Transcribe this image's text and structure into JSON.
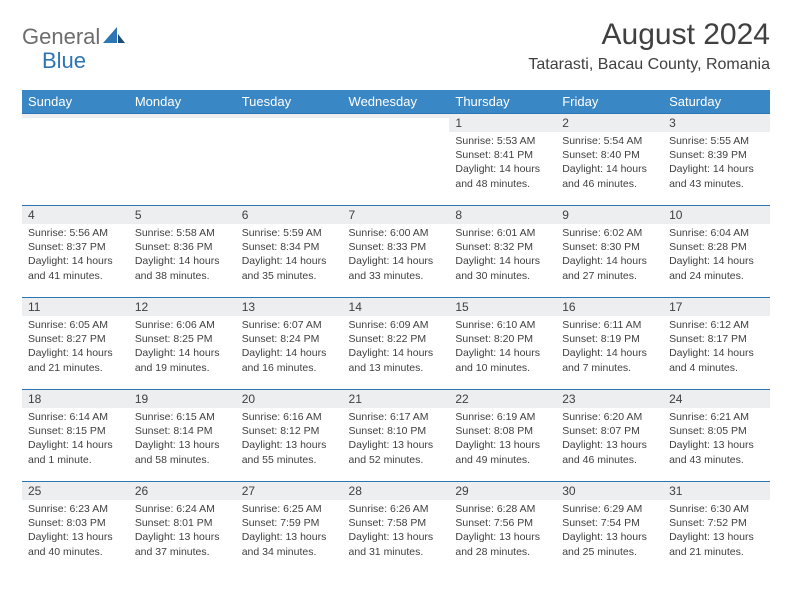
{
  "brand": {
    "part1": "General",
    "part2": "Blue"
  },
  "title": {
    "month": "August 2024",
    "location": "Tatarasti, Bacau County, Romania"
  },
  "colors": {
    "header_bg": "#3a87c6",
    "header_text": "#ffffff",
    "accent_line": "#2e75b6",
    "daynum_bg": "#eceeef",
    "body_text": "#404040",
    "logo_gray": "#6d6d6d",
    "logo_blue": "#2e75b6",
    "page_bg": "#ffffff"
  },
  "weekdays": [
    "Sunday",
    "Monday",
    "Tuesday",
    "Wednesday",
    "Thursday",
    "Friday",
    "Saturday"
  ],
  "labels": {
    "sunrise": "Sunrise:",
    "sunset": "Sunset:",
    "daylight": "Daylight:"
  },
  "weeks": [
    [
      null,
      null,
      null,
      null,
      {
        "n": "1",
        "sr": "5:53 AM",
        "ss": "8:41 PM",
        "dl": "14 hours and 48 minutes."
      },
      {
        "n": "2",
        "sr": "5:54 AM",
        "ss": "8:40 PM",
        "dl": "14 hours and 46 minutes."
      },
      {
        "n": "3",
        "sr": "5:55 AM",
        "ss": "8:39 PM",
        "dl": "14 hours and 43 minutes."
      }
    ],
    [
      {
        "n": "4",
        "sr": "5:56 AM",
        "ss": "8:37 PM",
        "dl": "14 hours and 41 minutes."
      },
      {
        "n": "5",
        "sr": "5:58 AM",
        "ss": "8:36 PM",
        "dl": "14 hours and 38 minutes."
      },
      {
        "n": "6",
        "sr": "5:59 AM",
        "ss": "8:34 PM",
        "dl": "14 hours and 35 minutes."
      },
      {
        "n": "7",
        "sr": "6:00 AM",
        "ss": "8:33 PM",
        "dl": "14 hours and 33 minutes."
      },
      {
        "n": "8",
        "sr": "6:01 AM",
        "ss": "8:32 PM",
        "dl": "14 hours and 30 minutes."
      },
      {
        "n": "9",
        "sr": "6:02 AM",
        "ss": "8:30 PM",
        "dl": "14 hours and 27 minutes."
      },
      {
        "n": "10",
        "sr": "6:04 AM",
        "ss": "8:28 PM",
        "dl": "14 hours and 24 minutes."
      }
    ],
    [
      {
        "n": "11",
        "sr": "6:05 AM",
        "ss": "8:27 PM",
        "dl": "14 hours and 21 minutes."
      },
      {
        "n": "12",
        "sr": "6:06 AM",
        "ss": "8:25 PM",
        "dl": "14 hours and 19 minutes."
      },
      {
        "n": "13",
        "sr": "6:07 AM",
        "ss": "8:24 PM",
        "dl": "14 hours and 16 minutes."
      },
      {
        "n": "14",
        "sr": "6:09 AM",
        "ss": "8:22 PM",
        "dl": "14 hours and 13 minutes."
      },
      {
        "n": "15",
        "sr": "6:10 AM",
        "ss": "8:20 PM",
        "dl": "14 hours and 10 minutes."
      },
      {
        "n": "16",
        "sr": "6:11 AM",
        "ss": "8:19 PM",
        "dl": "14 hours and 7 minutes."
      },
      {
        "n": "17",
        "sr": "6:12 AM",
        "ss": "8:17 PM",
        "dl": "14 hours and 4 minutes."
      }
    ],
    [
      {
        "n": "18",
        "sr": "6:14 AM",
        "ss": "8:15 PM",
        "dl": "14 hours and 1 minute."
      },
      {
        "n": "19",
        "sr": "6:15 AM",
        "ss": "8:14 PM",
        "dl": "13 hours and 58 minutes."
      },
      {
        "n": "20",
        "sr": "6:16 AM",
        "ss": "8:12 PM",
        "dl": "13 hours and 55 minutes."
      },
      {
        "n": "21",
        "sr": "6:17 AM",
        "ss": "8:10 PM",
        "dl": "13 hours and 52 minutes."
      },
      {
        "n": "22",
        "sr": "6:19 AM",
        "ss": "8:08 PM",
        "dl": "13 hours and 49 minutes."
      },
      {
        "n": "23",
        "sr": "6:20 AM",
        "ss": "8:07 PM",
        "dl": "13 hours and 46 minutes."
      },
      {
        "n": "24",
        "sr": "6:21 AM",
        "ss": "8:05 PM",
        "dl": "13 hours and 43 minutes."
      }
    ],
    [
      {
        "n": "25",
        "sr": "6:23 AM",
        "ss": "8:03 PM",
        "dl": "13 hours and 40 minutes."
      },
      {
        "n": "26",
        "sr": "6:24 AM",
        "ss": "8:01 PM",
        "dl": "13 hours and 37 minutes."
      },
      {
        "n": "27",
        "sr": "6:25 AM",
        "ss": "7:59 PM",
        "dl": "13 hours and 34 minutes."
      },
      {
        "n": "28",
        "sr": "6:26 AM",
        "ss": "7:58 PM",
        "dl": "13 hours and 31 minutes."
      },
      {
        "n": "29",
        "sr": "6:28 AM",
        "ss": "7:56 PM",
        "dl": "13 hours and 28 minutes."
      },
      {
        "n": "30",
        "sr": "6:29 AM",
        "ss": "7:54 PM",
        "dl": "13 hours and 25 minutes."
      },
      {
        "n": "31",
        "sr": "6:30 AM",
        "ss": "7:52 PM",
        "dl": "13 hours and 21 minutes."
      }
    ]
  ]
}
